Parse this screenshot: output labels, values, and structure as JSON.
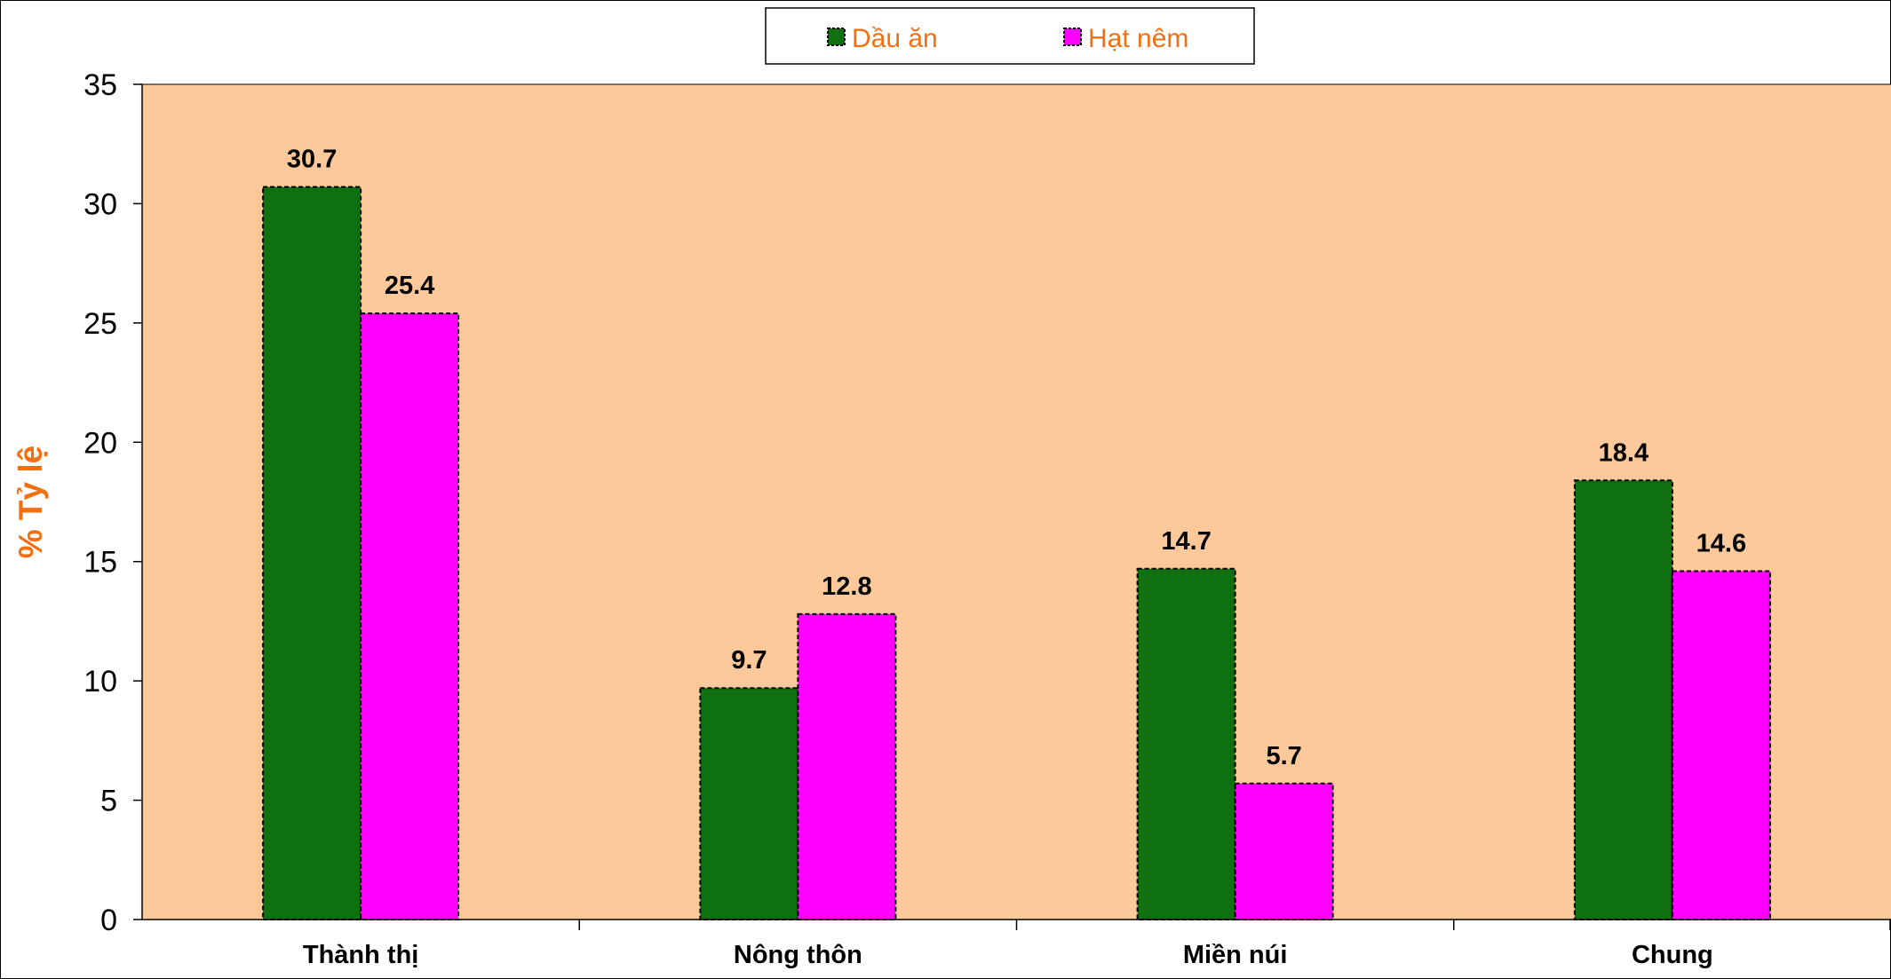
{
  "chart_data": {
    "type": "bar",
    "categories": [
      "Thành thị",
      "Nông thôn",
      "Miền núi",
      "Chung"
    ],
    "series": [
      {
        "name": "Dầu ăn",
        "values": [
          30.7,
          9.7,
          14.7,
          18.4
        ],
        "color": "#0f700f"
      },
      {
        "name": "Hạt nêm",
        "values": [
          25.4,
          12.8,
          5.7,
          14.6
        ],
        "color": "#ff00ff"
      }
    ],
    "xlabel": "",
    "ylabel": "% Tỷ lệ",
    "ylim": [
      0,
      35
    ],
    "yticks": [
      0,
      5,
      10,
      15,
      20,
      25,
      30,
      35
    ],
    "legend_position": "top-center",
    "grid": false,
    "colors": {
      "plot_background": "#fdc99b",
      "accent_text": "#f26f12"
    }
  }
}
